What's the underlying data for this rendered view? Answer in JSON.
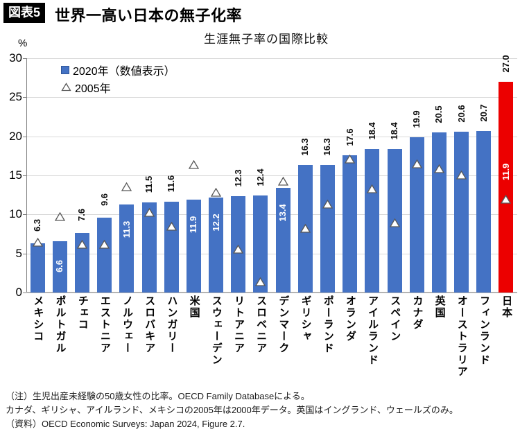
{
  "header": {
    "badge": "図表5",
    "title": "世界一高い日本の無子化率"
  },
  "chart_data": {
    "type": "bar",
    "title": "生涯無子率の国際比較",
    "ylabel": "%",
    "ylim": [
      0,
      30
    ],
    "yticks": [
      0,
      5,
      10,
      15,
      20,
      25,
      30
    ],
    "grid": true,
    "legend_position": "top-left",
    "legend": [
      {
        "label": "2020年（数値表示）",
        "marker": "square"
      },
      {
        "label": "2005年",
        "marker": "triangle"
      }
    ],
    "categories": [
      "メキシコ",
      "ポルトガル",
      "チェコ",
      "エストニア",
      "ノルウェー",
      "スロバキア",
      "ハンガリー",
      "米国",
      "スウェーデン",
      "リトアニア",
      "スロベニア",
      "デンマーク",
      "ギリシャ",
      "ポーランド",
      "オランダ",
      "アイルランド",
      "スペイン",
      "カナダ",
      "英国",
      "オーストラリア",
      "フィンランド",
      "日本"
    ],
    "series": [
      {
        "name": "2020年",
        "type": "bar",
        "values": [
          6.3,
          6.6,
          7.6,
          9.6,
          11.3,
          11.5,
          11.6,
          11.9,
          12.2,
          12.3,
          12.4,
          13.4,
          16.3,
          16.3,
          17.6,
          18.4,
          18.4,
          19.9,
          20.5,
          20.6,
          20.7,
          27.0
        ],
        "label_positions": [
          "above",
          "inside",
          "above",
          "above",
          "inside",
          "above",
          "above",
          "inside",
          "inside",
          "above",
          "above",
          "inside",
          "above",
          "above",
          "above",
          "above",
          "above",
          "above",
          "above",
          "above",
          "above",
          "above"
        ],
        "highlight_index": 21
      },
      {
        "name": "2005年",
        "type": "triangle-marker",
        "values": [
          6.4,
          9.7,
          6.1,
          6.1,
          13.5,
          10.2,
          8.4,
          16.3,
          12.8,
          5.5,
          1.3,
          14.2,
          8.2,
          11.3,
          17.0,
          13.2,
          8.9,
          16.4,
          15.8,
          15.0,
          null,
          11.9
        ],
        "labeled_point": {
          "index": 21,
          "text": "11.9"
        }
      }
    ],
    "colors": {
      "bar": "#4472c4",
      "highlight": "#ec0000",
      "marker_fill": "#ffffff",
      "marker_stroke": "#595959",
      "label_above": "#0d0d0d",
      "label_inside": "#ffffff"
    }
  },
  "footnotes": [
    "（注）生児出産未経験の50歳女性の比率。OECD Family Databaseによる。",
    "カナダ、ギリシャ、アイルランド、メキシコの2005年は2000年データ。英国はイングランド、ウェールズのみ。",
    "（資料）OECD Economic Surveys: Japan 2024, Figure 2.7."
  ]
}
